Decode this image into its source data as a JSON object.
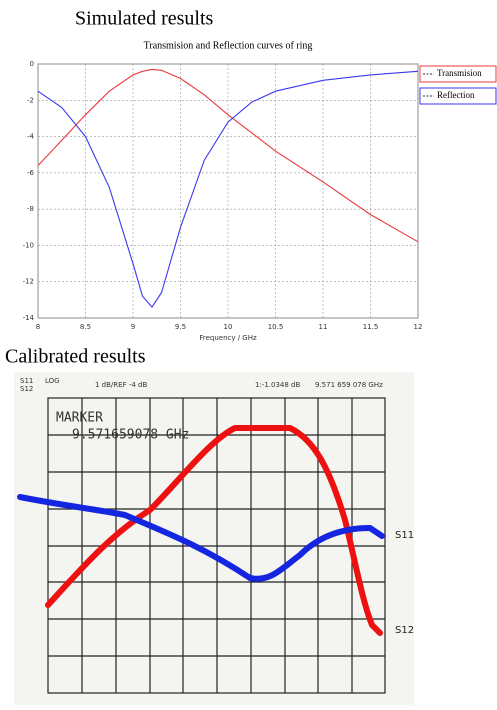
{
  "simulated_heading": "Simulated results",
  "chart_data": {
    "type": "line",
    "title": "Transmision and Reflection curves of ring",
    "x_label": "Frequency / GHz",
    "x": [
      8,
      8.25,
      8.5,
      8.75,
      9,
      9.1,
      9.2,
      9.3,
      9.5,
      9.75,
      10,
      10.25,
      10.5,
      11,
      11.5,
      12
    ],
    "series": [
      {
        "name": "Transmision",
        "color": "#e8383d",
        "values": [
          -5.6,
          -4.2,
          -2.8,
          -1.5,
          -0.6,
          -0.4,
          -0.3,
          -0.35,
          -0.8,
          -1.7,
          -2.8,
          -3.8,
          -4.8,
          -6.5,
          -8.3,
          -9.8
        ]
      },
      {
        "name": "Reflection",
        "color": "#3a3af0",
        "values": [
          -1.5,
          -2.4,
          -4.0,
          -6.8,
          -11.0,
          -12.8,
          -13.4,
          -12.6,
          -9.0,
          -5.3,
          -3.2,
          -2.1,
          -1.5,
          -0.9,
          -0.6,
          -0.4
        ]
      }
    ],
    "xlim": [
      8,
      12
    ],
    "xticks": [
      8,
      8.5,
      9,
      9.5,
      10,
      10.5,
      11,
      11.5,
      12
    ],
    "ylim": [
      -14,
      0
    ],
    "yticks": [
      0,
      -2,
      -4,
      -6,
      -8,
      -10,
      -12,
      -14
    ],
    "grid": true,
    "legend": "outside-right"
  },
  "calibrated": {
    "heading": "Calibrated results",
    "header": [
      "S11",
      "S12",
      "LOG",
      "1 dB/REF -4 dB",
      "1:-1.0348 dB",
      "9.571 659 078 GHz"
    ],
    "marker_label": "MARKER",
    "marker_freq": "9.571659078 GHz",
    "curve_labels": [
      "S11",
      "S12"
    ]
  }
}
